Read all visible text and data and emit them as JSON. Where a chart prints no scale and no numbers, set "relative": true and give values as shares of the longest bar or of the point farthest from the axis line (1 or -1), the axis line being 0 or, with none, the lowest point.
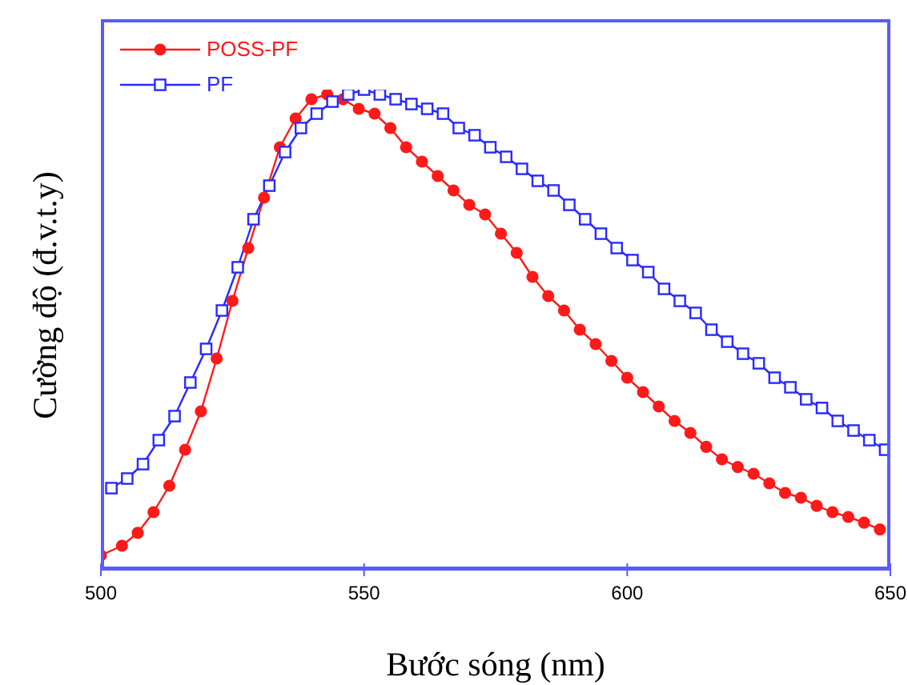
{
  "chart_data": {
    "type": "line",
    "relative": true,
    "xlabel": "Bước sóng (nm)",
    "ylabel": "Cường độ (đ.v.t.y)",
    "xlim": [
      500,
      650
    ],
    "xticks": [
      500,
      550,
      600,
      650
    ],
    "legend": "top left",
    "grid": false,
    "series": [
      {
        "name": "POSS-PF",
        "color": "#ff1a1a",
        "marker": "circle",
        "x": [
          500,
          504,
          507,
          510,
          513,
          516,
          519,
          522,
          525,
          528,
          531,
          534,
          537,
          540,
          543,
          546,
          549,
          552,
          555,
          558,
          561,
          564,
          567,
          570,
          573,
          576,
          579,
          582,
          585,
          588,
          591,
          594,
          597,
          600,
          603,
          606,
          609,
          612,
          615,
          618,
          621,
          624,
          627,
          630,
          633,
          636,
          639,
          642,
          645,
          648
        ],
        "values": [
          0.03,
          0.05,
          0.077,
          0.12,
          0.175,
          0.25,
          0.33,
          0.44,
          0.56,
          0.67,
          0.775,
          0.88,
          0.94,
          0.98,
          0.99,
          0.98,
          0.96,
          0.95,
          0.92,
          0.88,
          0.85,
          0.82,
          0.79,
          0.76,
          0.74,
          0.7,
          0.66,
          0.61,
          0.57,
          0.54,
          0.5,
          0.47,
          0.435,
          0.4,
          0.37,
          0.34,
          0.31,
          0.285,
          0.256,
          0.23,
          0.214,
          0.2,
          0.18,
          0.16,
          0.15,
          0.133,
          0.12,
          0.11,
          0.098,
          0.084
        ]
      },
      {
        "name": "PF",
        "color": "#2a2aff",
        "marker": "square",
        "x": [
          502,
          505,
          508,
          511,
          514,
          517,
          520,
          523,
          526,
          529,
          532,
          535,
          538,
          541,
          544,
          547,
          550,
          553,
          556,
          559,
          562,
          565,
          568,
          571,
          574,
          577,
          580,
          583,
          586,
          589,
          592,
          595,
          598,
          601,
          604,
          607,
          610,
          613,
          616,
          619,
          622,
          625,
          628,
          631,
          634,
          637,
          640,
          643,
          646,
          649
        ],
        "values": [
          0.17,
          0.19,
          0.22,
          0.27,
          0.32,
          0.39,
          0.46,
          0.54,
          0.63,
          0.73,
          0.8,
          0.87,
          0.92,
          0.95,
          0.975,
          0.99,
          1,
          0.99,
          0.98,
          0.97,
          0.96,
          0.95,
          0.92,
          0.905,
          0.88,
          0.86,
          0.835,
          0.81,
          0.79,
          0.76,
          0.73,
          0.7,
          0.67,
          0.645,
          0.62,
          0.585,
          0.56,
          0.535,
          0.5,
          0.475,
          0.45,
          0.43,
          0.4,
          0.38,
          0.355,
          0.337,
          0.31,
          0.29,
          0.27,
          0.25
        ]
      }
    ]
  }
}
